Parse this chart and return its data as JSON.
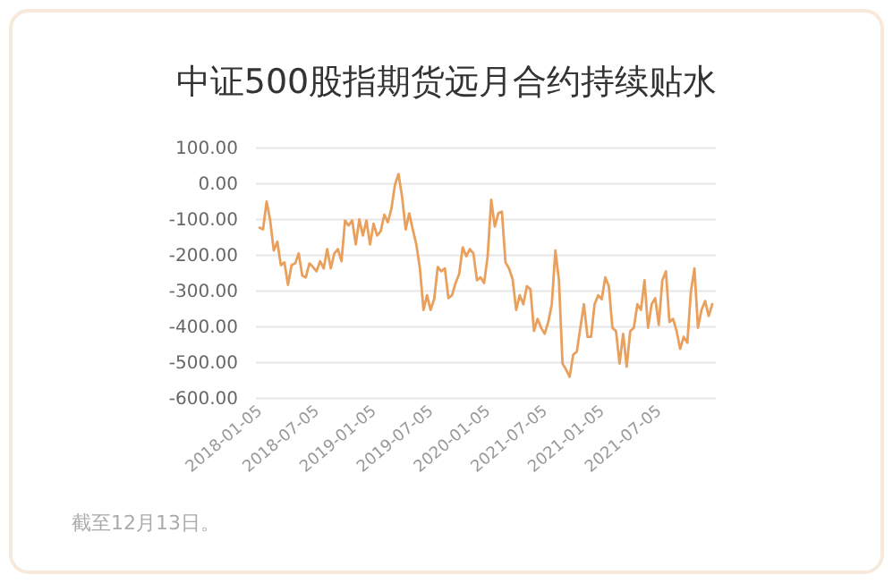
{
  "chart_data": {
    "type": "line",
    "title": "中证500股指期货远月合约持续贴水",
    "categories": [
      null,
      "2018-01-05",
      null,
      null,
      null,
      null,
      null,
      null,
      null,
      null,
      null,
      null,
      null,
      null,
      null,
      null,
      null,
      "2018-07-05",
      null,
      null,
      null,
      null,
      null,
      null,
      null,
      null,
      null,
      null,
      null,
      null,
      null,
      null,
      null,
      "2019-01-05",
      null,
      null,
      null,
      null,
      null,
      null,
      null,
      null,
      null,
      null,
      null,
      null,
      null,
      null,
      null,
      "2019-07-05",
      null,
      null,
      null,
      null,
      null,
      null,
      null,
      null,
      null,
      null,
      null,
      null,
      null,
      null,
      null,
      "2020-01-05",
      null,
      null,
      null,
      null,
      null,
      null,
      null,
      null,
      null,
      null,
      null,
      null,
      null,
      null,
      null,
      "2021-07-05",
      null,
      null,
      null,
      null,
      null,
      null,
      null,
      null,
      null,
      null,
      null,
      null,
      null,
      null,
      null,
      "2021-01-05",
      null,
      null,
      null,
      null,
      null,
      null,
      null,
      null,
      null,
      null,
      null,
      null,
      null,
      null,
      null,
      "2021-07-05",
      null,
      null,
      null,
      null,
      null,
      null,
      null,
      null,
      null,
      null,
      null,
      null,
      null,
      null
    ],
    "series": [
      {
        "color": "#e9a05c",
        "values": [
          -123,
          -128,
          -50,
          -103,
          -187,
          -162,
          -228,
          -220,
          -283,
          -228,
          -223,
          -195,
          -257,
          -262,
          -223,
          -233,
          -245,
          -217,
          -237,
          -183,
          -237,
          -195,
          -183,
          -217,
          -103,
          -117,
          -103,
          -170,
          -100,
          -145,
          -103,
          -170,
          -112,
          -145,
          -133,
          -87,
          -108,
          -70,
          -3,
          27,
          -37,
          -128,
          -83,
          -128,
          -170,
          -237,
          -353,
          -312,
          -353,
          -323,
          -233,
          -245,
          -237,
          -320,
          -312,
          -278,
          -253,
          -178,
          -203,
          -183,
          -195,
          -270,
          -262,
          -278,
          -203,
          -45,
          -120,
          -83,
          -78,
          -220,
          -237,
          -267,
          -353,
          -312,
          -337,
          -287,
          -295,
          -412,
          -378,
          -403,
          -420,
          -387,
          -337,
          -187,
          -270,
          -503,
          -520,
          -540,
          -478,
          -470,
          -403,
          -337,
          -428,
          -428,
          -337,
          -312,
          -323,
          -262,
          -287,
          -403,
          -412,
          -503,
          -420,
          -512,
          -412,
          -403,
          -337,
          -353,
          -270,
          -403,
          -337,
          -320,
          -395,
          -270,
          -245,
          -387,
          -378,
          -412,
          -462,
          -428,
          -445,
          -303,
          -237,
          -403,
          -353,
          -328,
          -370,
          -337
        ]
      }
    ],
    "ylim": [
      -600,
      100
    ],
    "yticks": [
      {
        "value": -600,
        "label": "-600.00"
      },
      {
        "value": -500,
        "label": "-500.00"
      },
      {
        "value": -400,
        "label": "-400.00"
      },
      {
        "value": -300,
        "label": "-300.00"
      },
      {
        "value": -200,
        "label": "-200.00"
      },
      {
        "value": -100,
        "label": "-100.00"
      },
      {
        "value": 0,
        "label": "0.00"
      },
      {
        "value": 100,
        "label": "100.00"
      }
    ],
    "grid": "y",
    "line_style": "solid",
    "annotations": [
      "截至12月13日。"
    ]
  }
}
